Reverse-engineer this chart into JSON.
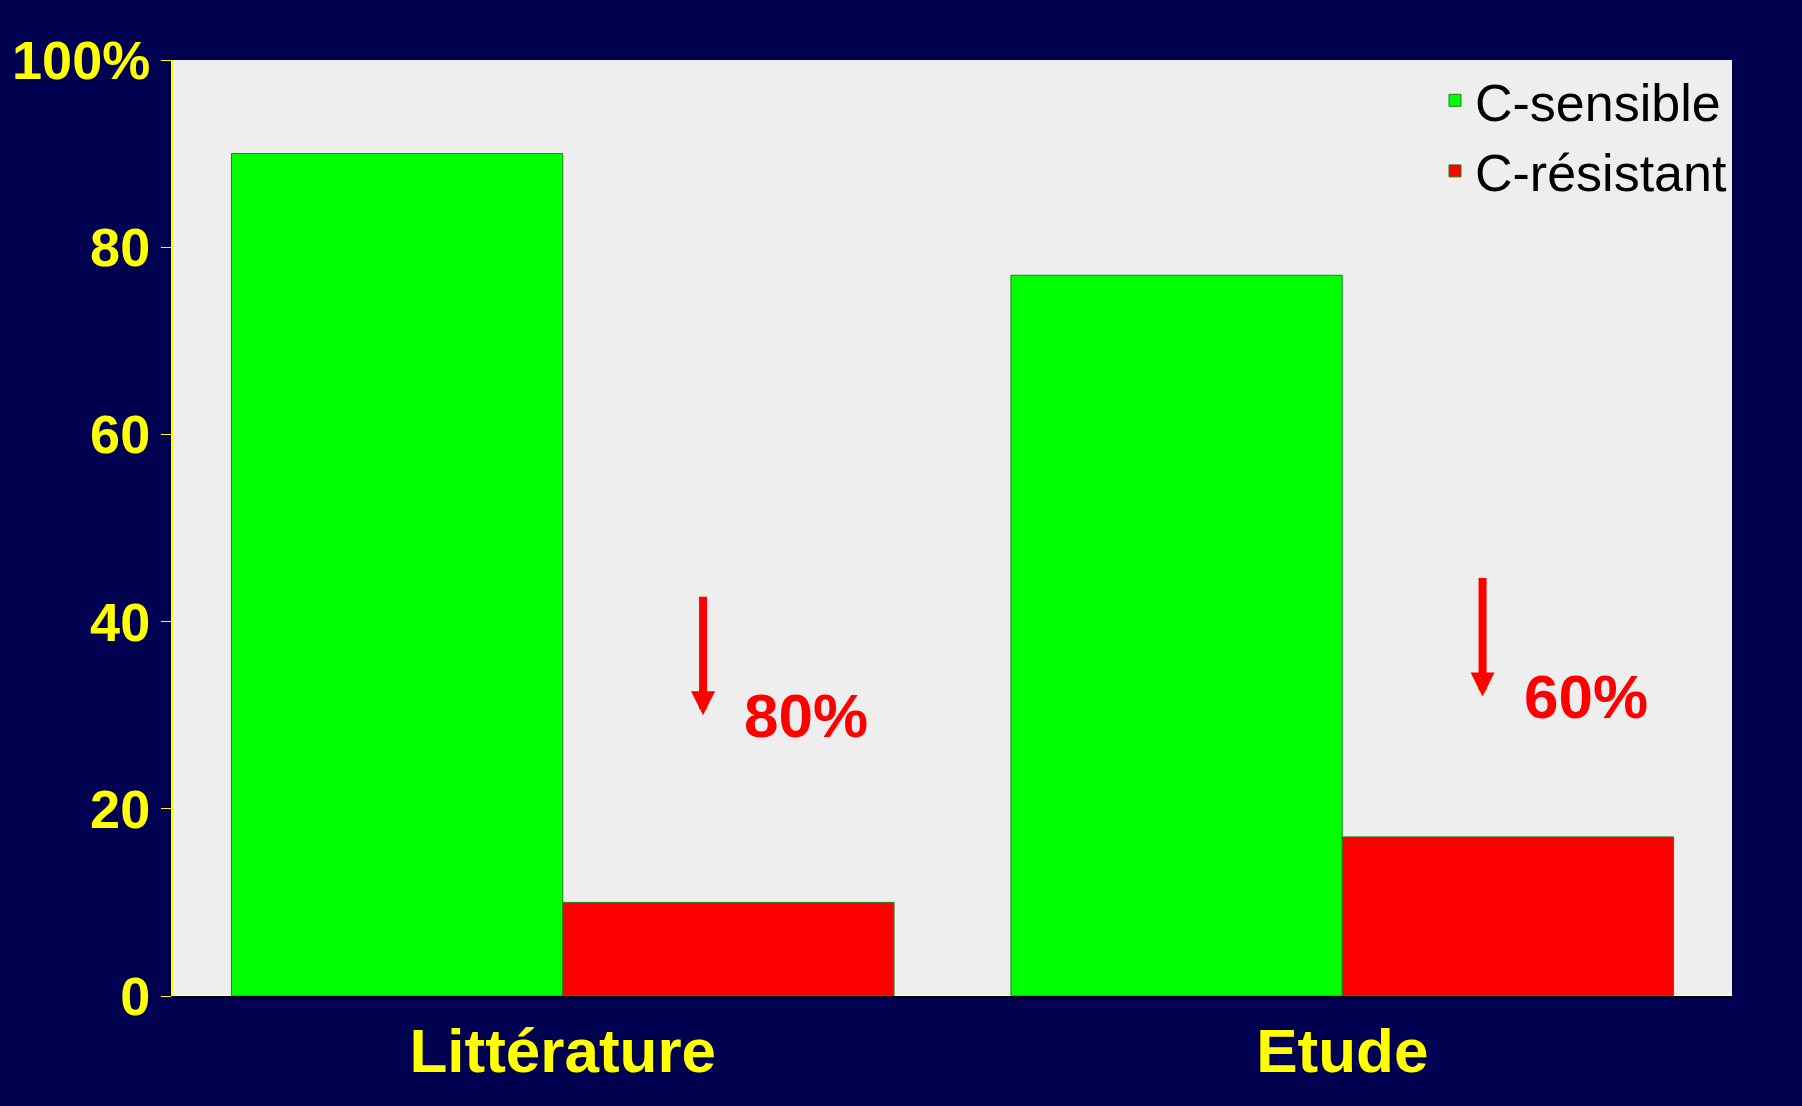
{
  "chart_data": {
    "type": "bar",
    "categories": [
      "Littérature",
      "Etude"
    ],
    "series": [
      {
        "name": "C-sensible",
        "color": "#00ff00",
        "values": [
          90,
          77
        ]
      },
      {
        "name": "C-résistant",
        "color": "#ff0000",
        "values": [
          10,
          17
        ]
      }
    ],
    "ylim": [
      0,
      100
    ],
    "yticks": [
      0,
      20,
      40,
      60,
      80,
      {
        "value": 100,
        "label": "100%"
      }
    ],
    "annotations": [
      "80%",
      "60%"
    ],
    "grid": false,
    "legend": "top right"
  }
}
